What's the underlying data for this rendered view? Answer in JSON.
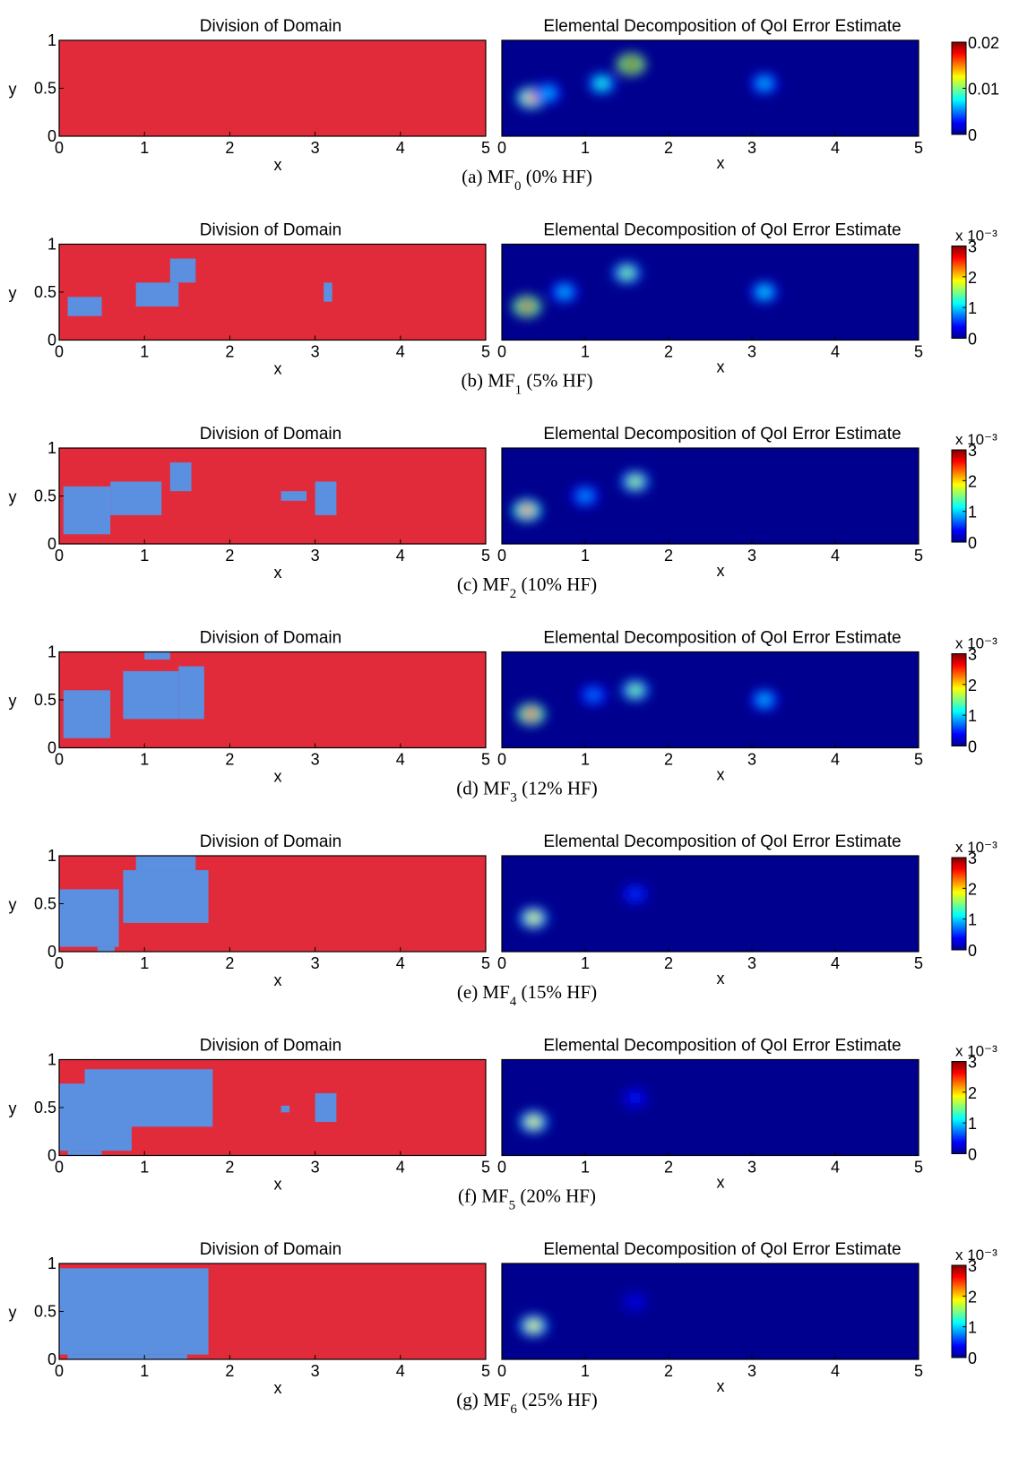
{
  "figure": {
    "panels": [
      {
        "caption": {
          "prefix": "(a) MF",
          "sub": "0",
          "suffix": " (0% HF)"
        },
        "left": {
          "title": "Division of Domain",
          "xlabel": "x",
          "ylabel": "y",
          "xticks": [
            "0",
            "1",
            "2",
            "3",
            "4",
            "5"
          ],
          "yticks": [
            "0",
            "0.5",
            "1"
          ],
          "hf_regions": []
        },
        "right": {
          "title": "Elemental Decomposition of QoI Error Estimate",
          "xlabel": "x",
          "xticks": [
            "0",
            "1",
            "2",
            "3",
            "4",
            "5"
          ],
          "colorbar": {
            "ticks": [
              "0.02",
              "0.01",
              "0"
            ],
            "exponent_label": "",
            "max": 0.02
          },
          "hotspots": [
            {
              "x": 0.35,
              "y": 0.4,
              "value": 0.0145
            },
            {
              "x": 0.55,
              "y": 0.45,
              "value": 0.006
            },
            {
              "x": 1.2,
              "y": 0.55,
              "value": 0.008
            },
            {
              "x": 1.55,
              "y": 0.75,
              "value": 0.02
            },
            {
              "x": 3.15,
              "y": 0.55,
              "value": 0.006
            }
          ]
        }
      },
      {
        "caption": {
          "prefix": "(b) MF",
          "sub": "1",
          "suffix": " (5% HF)"
        },
        "left": {
          "title": "Division of Domain",
          "xlabel": "x",
          "ylabel": "y",
          "xticks": [
            "0",
            "1",
            "2",
            "3",
            "4",
            "5"
          ],
          "yticks": [
            "0",
            "0.5",
            "1"
          ],
          "hf_regions": [
            {
              "x0": 0.1,
              "x1": 0.5,
              "y0": 0.25,
              "y1": 0.45
            },
            {
              "x0": 0.9,
              "x1": 1.4,
              "y0": 0.35,
              "y1": 0.6
            },
            {
              "x0": 1.3,
              "x1": 1.6,
              "y0": 0.6,
              "y1": 0.85
            },
            {
              "x0": 3.1,
              "x1": 3.2,
              "y0": 0.4,
              "y1": 0.6
            }
          ]
        },
        "right": {
          "title": "Elemental Decomposition of QoI Error Estimate",
          "xlabel": "x",
          "xticks": [
            "0",
            "1",
            "2",
            "3",
            "4",
            "5"
          ],
          "colorbar": {
            "ticks": [
              "3",
              "2",
              "1",
              "0"
            ],
            "exponent_label": "x 10⁻³",
            "max": 3
          },
          "hotspots": [
            {
              "x": 0.3,
              "y": 0.35,
              "value": 2.8
            },
            {
              "x": 0.75,
              "y": 0.5,
              "value": 0.9
            },
            {
              "x": 1.5,
              "y": 0.7,
              "value": 1.5
            },
            {
              "x": 3.15,
              "y": 0.5,
              "value": 1.0
            }
          ]
        }
      },
      {
        "caption": {
          "prefix": "(c) MF",
          "sub": "2",
          "suffix": " (10% HF)"
        },
        "left": {
          "title": "Division of Domain",
          "xlabel": "x",
          "ylabel": "y",
          "xticks": [
            "0",
            "1",
            "2",
            "3",
            "4",
            "5"
          ],
          "yticks": [
            "0",
            "0.5",
            "1"
          ],
          "hf_regions": [
            {
              "x0": 0.05,
              "x1": 0.6,
              "y0": 0.1,
              "y1": 0.6
            },
            {
              "x0": 0.6,
              "x1": 1.2,
              "y0": 0.3,
              "y1": 0.65
            },
            {
              "x0": 1.3,
              "x1": 1.55,
              "y0": 0.55,
              "y1": 0.85
            },
            {
              "x0": 2.6,
              "x1": 2.9,
              "y0": 0.45,
              "y1": 0.55
            },
            {
              "x0": 3.0,
              "x1": 3.25,
              "y0": 0.3,
              "y1": 0.65
            }
          ]
        },
        "right": {
          "title": "Elemental Decomposition of QoI Error Estimate",
          "xlabel": "x",
          "xticks": [
            "0",
            "1",
            "2",
            "3",
            "4",
            "5"
          ],
          "colorbar": {
            "ticks": [
              "3",
              "2",
              "1",
              "0"
            ],
            "exponent_label": "x 10⁻³",
            "max": 3
          },
          "hotspots": [
            {
              "x": 0.3,
              "y": 0.35,
              "value": 2.3
            },
            {
              "x": 1.0,
              "y": 0.5,
              "value": 0.8
            },
            {
              "x": 1.6,
              "y": 0.65,
              "value": 1.6
            }
          ]
        }
      },
      {
        "caption": {
          "prefix": "(d) MF",
          "sub": "3",
          "suffix": " (12% HF)"
        },
        "left": {
          "title": "Division of Domain",
          "xlabel": "x",
          "ylabel": "y",
          "xticks": [
            "0",
            "1",
            "2",
            "3",
            "4",
            "5"
          ],
          "yticks": [
            "0",
            "0.5",
            "1"
          ],
          "hf_regions": [
            {
              "x0": 0.05,
              "x1": 0.6,
              "y0": 0.1,
              "y1": 0.6
            },
            {
              "x0": 0.75,
              "x1": 1.4,
              "y0": 0.3,
              "y1": 0.8
            },
            {
              "x0": 1.4,
              "x1": 1.7,
              "y0": 0.3,
              "y1": 0.85
            },
            {
              "x0": 1.0,
              "x1": 1.3,
              "y0": 0.92,
              "y1": 1.0
            }
          ]
        },
        "right": {
          "title": "Elemental Decomposition of QoI Error Estimate",
          "xlabel": "x",
          "xticks": [
            "0",
            "1",
            "2",
            "3",
            "4",
            "5"
          ],
          "colorbar": {
            "ticks": [
              "3",
              "2",
              "1",
              "0"
            ],
            "exponent_label": "x 10⁻³",
            "max": 3
          },
          "hotspots": [
            {
              "x": 0.35,
              "y": 0.35,
              "value": 2.6
            },
            {
              "x": 1.1,
              "y": 0.55,
              "value": 0.7
            },
            {
              "x": 1.6,
              "y": 0.6,
              "value": 1.5
            },
            {
              "x": 3.15,
              "y": 0.5,
              "value": 0.9
            }
          ]
        }
      },
      {
        "caption": {
          "prefix": "(e) MF",
          "sub": "4",
          "suffix": " (15% HF)"
        },
        "left": {
          "title": "Division of Domain",
          "xlabel": "x",
          "ylabel": "y",
          "xticks": [
            "0",
            "1",
            "2",
            "3",
            "4",
            "5"
          ],
          "yticks": [
            "0",
            "0.5",
            "1"
          ],
          "hf_regions": [
            {
              "x0": 0.0,
              "x1": 0.7,
              "y0": 0.05,
              "y1": 0.65
            },
            {
              "x0": 0.75,
              "x1": 1.75,
              "y0": 0.3,
              "y1": 0.85
            },
            {
              "x0": 0.9,
              "x1": 1.6,
              "y0": 0.85,
              "y1": 1.0
            },
            {
              "x0": 0.45,
              "x1": 0.65,
              "y0": 0.0,
              "y1": 0.05
            }
          ]
        },
        "right": {
          "title": "Elemental Decomposition of QoI Error Estimate",
          "xlabel": "x",
          "xticks": [
            "0",
            "1",
            "2",
            "3",
            "4",
            "5"
          ],
          "colorbar": {
            "ticks": [
              "3",
              "2",
              "1",
              "0"
            ],
            "exponent_label": "x 10⁻³",
            "max": 3
          },
          "hotspots": [
            {
              "x": 0.38,
              "y": 0.35,
              "value": 1.8
            },
            {
              "x": 1.6,
              "y": 0.6,
              "value": 0.5
            }
          ]
        }
      },
      {
        "caption": {
          "prefix": "(f) MF",
          "sub": "5",
          "suffix": " (20% HF)"
        },
        "left": {
          "title": "Division of Domain",
          "xlabel": "x",
          "ylabel": "y",
          "xticks": [
            "0",
            "1",
            "2",
            "3",
            "4",
            "5"
          ],
          "yticks": [
            "0",
            "0.5",
            "1"
          ],
          "hf_regions": [
            {
              "x0": 0.0,
              "x1": 0.85,
              "y0": 0.05,
              "y1": 0.75
            },
            {
              "x0": 0.3,
              "x1": 1.8,
              "y0": 0.3,
              "y1": 0.9
            },
            {
              "x0": 0.1,
              "x1": 0.5,
              "y0": 0.0,
              "y1": 0.05
            },
            {
              "x0": 2.6,
              "x1": 2.7,
              "y0": 0.45,
              "y1": 0.52
            },
            {
              "x0": 3.0,
              "x1": 3.25,
              "y0": 0.35,
              "y1": 0.65
            }
          ]
        },
        "right": {
          "title": "Elemental Decomposition of QoI Error Estimate",
          "xlabel": "x",
          "xticks": [
            "0",
            "1",
            "2",
            "3",
            "4",
            "5"
          ],
          "colorbar": {
            "ticks": [
              "3",
              "2",
              "1",
              "0"
            ],
            "exponent_label": "x 10⁻³",
            "max": 3
          },
          "hotspots": [
            {
              "x": 0.38,
              "y": 0.35,
              "value": 1.8
            },
            {
              "x": 1.6,
              "y": 0.6,
              "value": 0.4
            }
          ]
        }
      },
      {
        "caption": {
          "prefix": "(g) MF",
          "sub": "6",
          "suffix": " (25% HF)"
        },
        "left": {
          "title": "Division of Domain",
          "xlabel": "x",
          "ylabel": "y",
          "xticks": [
            "0",
            "1",
            "2",
            "3",
            "4",
            "5"
          ],
          "yticks": [
            "0",
            "0.5",
            "1"
          ],
          "hf_regions": [
            {
              "x0": 0.0,
              "x1": 1.75,
              "y0": 0.05,
              "y1": 0.95
            },
            {
              "x0": 0.1,
              "x1": 1.5,
              "y0": 0.0,
              "y1": 0.05
            }
          ]
        },
        "right": {
          "title": "Elemental Decomposition of QoI Error Estimate",
          "xlabel": "x",
          "xticks": [
            "0",
            "1",
            "2",
            "3",
            "4",
            "5"
          ],
          "colorbar": {
            "ticks": [
              "3",
              "2",
              "1",
              "0"
            ],
            "exponent_label": "x 10⁻³",
            "max": 3
          },
          "hotspots": [
            {
              "x": 0.38,
              "y": 0.35,
              "value": 1.8
            },
            {
              "x": 1.6,
              "y": 0.6,
              "value": 0.3
            }
          ]
        }
      }
    ]
  },
  "chart_data": [
    {
      "type": "heatmap",
      "title": "Division of Domain",
      "xlabel": "x",
      "ylabel": "y",
      "xlim": [
        0,
        5
      ],
      "ylim": [
        0,
        1
      ],
      "hf_fraction_percent": 0,
      "caption": "(a) MF0 (0% HF)"
    },
    {
      "type": "heatmap",
      "title": "Elemental Decomposition of QoI Error Estimate",
      "xlabel": "x",
      "xlim": [
        0,
        5
      ],
      "ylim": [
        0,
        1
      ],
      "colorbar_range": [
        0,
        0.02
      ],
      "caption": "(a) MF0 (0% HF)"
    },
    {
      "type": "heatmap",
      "title": "Division of Domain",
      "xlabel": "x",
      "ylabel": "y",
      "xlim": [
        0,
        5
      ],
      "ylim": [
        0,
        1
      ],
      "hf_fraction_percent": 5,
      "caption": "(b) MF1 (5% HF)"
    },
    {
      "type": "heatmap",
      "title": "Elemental Decomposition of QoI Error Estimate",
      "xlabel": "x",
      "xlim": [
        0,
        5
      ],
      "ylim": [
        0,
        1
      ],
      "colorbar_range": [
        0,
        0.003
      ],
      "caption": "(b) MF1 (5% HF)"
    },
    {
      "type": "heatmap",
      "title": "Division of Domain",
      "xlabel": "x",
      "ylabel": "y",
      "xlim": [
        0,
        5
      ],
      "ylim": [
        0,
        1
      ],
      "hf_fraction_percent": 10,
      "caption": "(c) MF2 (10% HF)"
    },
    {
      "type": "heatmap",
      "title": "Elemental Decomposition of QoI Error Estimate",
      "xlabel": "x",
      "xlim": [
        0,
        5
      ],
      "ylim": [
        0,
        1
      ],
      "colorbar_range": [
        0,
        0.003
      ],
      "caption": "(c) MF2 (10% HF)"
    },
    {
      "type": "heatmap",
      "title": "Division of Domain",
      "xlabel": "x",
      "ylabel": "y",
      "xlim": [
        0,
        5
      ],
      "ylim": [
        0,
        1
      ],
      "hf_fraction_percent": 12,
      "caption": "(d) MF3 (12% HF)"
    },
    {
      "type": "heatmap",
      "title": "Elemental Decomposition of QoI Error Estimate",
      "xlabel": "x",
      "xlim": [
        0,
        5
      ],
      "ylim": [
        0,
        1
      ],
      "colorbar_range": [
        0,
        0.003
      ],
      "caption": "(d) MF3 (12% HF)"
    },
    {
      "type": "heatmap",
      "title": "Division of Domain",
      "xlabel": "x",
      "ylabel": "y",
      "xlim": [
        0,
        5
      ],
      "ylim": [
        0,
        1
      ],
      "hf_fraction_percent": 15,
      "caption": "(e) MF4 (15% HF)"
    },
    {
      "type": "heatmap",
      "title": "Elemental Decomposition of QoI Error Estimate",
      "xlabel": "x",
      "xlim": [
        0,
        5
      ],
      "ylim": [
        0,
        1
      ],
      "colorbar_range": [
        0,
        0.003
      ],
      "caption": "(e) MF4 (15% HF)"
    },
    {
      "type": "heatmap",
      "title": "Division of Domain",
      "xlabel": "x",
      "ylabel": "y",
      "xlim": [
        0,
        5
      ],
      "ylim": [
        0,
        1
      ],
      "hf_fraction_percent": 20,
      "caption": "(f) MF5 (20% HF)"
    },
    {
      "type": "heatmap",
      "title": "Elemental Decomposition of QoI Error Estimate",
      "xlabel": "x",
      "xlim": [
        0,
        5
      ],
      "ylim": [
        0,
        1
      ],
      "colorbar_range": [
        0,
        0.003
      ],
      "caption": "(f) MF5 (20% HF)"
    },
    {
      "type": "heatmap",
      "title": "Division of Domain",
      "xlabel": "x",
      "ylabel": "y",
      "xlim": [
        0,
        5
      ],
      "ylim": [
        0,
        1
      ],
      "hf_fraction_percent": 25,
      "caption": "(g) MF6 (25% HF)"
    },
    {
      "type": "heatmap",
      "title": "Elemental Decomposition of QoI Error Estimate",
      "xlabel": "x",
      "xlim": [
        0,
        5
      ],
      "ylim": [
        0,
        1
      ],
      "colorbar_range": [
        0,
        0.003
      ],
      "caption": "(g) MF6 (25% HF)"
    }
  ],
  "colors": {
    "low_fidelity": "#e22b3a",
    "high_fidelity": "#5b8fe0",
    "colormap": "jet"
  }
}
